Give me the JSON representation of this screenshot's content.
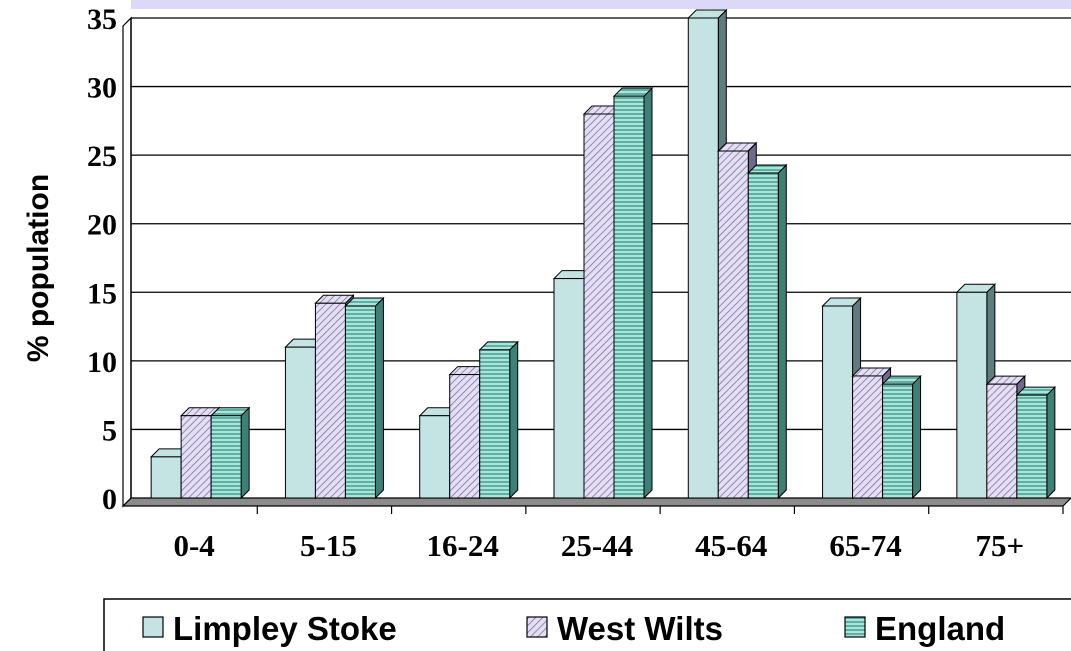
{
  "chart_data": {
    "type": "bar",
    "style": "3d-clustered-column",
    "categories": [
      "0-4",
      "5-15",
      "16-24",
      "25-44",
      "45-64",
      "65-74",
      "75+"
    ],
    "series": [
      {
        "name": "Limpley Stoke",
        "values": [
          3,
          11,
          6,
          16,
          35,
          14,
          15
        ],
        "color": "#C4E4E3",
        "side_color": "#5F7D7E",
        "pattern": "solid"
      },
      {
        "name": "West Wilts",
        "values": [
          6,
          14.2,
          9,
          28,
          25.3,
          8.9,
          8.3
        ],
        "color": "#D4CDF0",
        "side_color": "#6E6A8E",
        "pattern": "diagonal-hatch"
      },
      {
        "name": "England",
        "values": [
          6,
          14,
          10.8,
          29.3,
          23.7,
          8.3,
          7.5
        ],
        "color": "#7FD8C9",
        "side_color": "#3E7F76",
        "pattern": "horizontal-lines"
      }
    ],
    "title": "",
    "xlabel": "",
    "ylabel": "% population",
    "ylim": [
      0,
      35
    ],
    "yticks": [
      "0",
      "5",
      "10",
      "15",
      "20",
      "25",
      "30",
      "35"
    ],
    "grid": true,
    "legend_position": "bottom"
  }
}
